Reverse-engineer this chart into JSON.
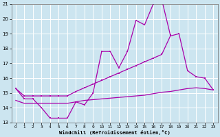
{
  "xlabel": "Windchill (Refroidissement éolien,°C)",
  "bg_color": "#cce5f0",
  "grid_color": "#ffffff",
  "line_color": "#aa00aa",
  "xlim": [
    -0.5,
    23.5
  ],
  "ylim": [
    13,
    21
  ],
  "x_ticks": [
    0,
    1,
    2,
    3,
    4,
    5,
    6,
    7,
    8,
    9,
    10,
    11,
    12,
    13,
    14,
    15,
    16,
    17,
    18,
    19,
    20,
    21,
    22,
    23
  ],
  "y_ticks": [
    13,
    14,
    15,
    16,
    17,
    18,
    19,
    20,
    21
  ],
  "line_jagged_x": [
    0,
    1,
    2,
    3,
    4,
    5,
    6,
    7,
    8,
    9,
    10,
    11,
    12,
    13,
    14,
    15,
    16,
    17,
    18
  ],
  "line_jagged_y": [
    15.3,
    14.6,
    14.6,
    14.0,
    13.3,
    13.3,
    13.3,
    14.4,
    14.2,
    15.0,
    17.8,
    17.8,
    16.7,
    17.8,
    19.9,
    19.6,
    21.0,
    21.3,
    18.9
  ],
  "line_upper_x": [
    0,
    1,
    2,
    3,
    4,
    5,
    6,
    7,
    8,
    9,
    10,
    11,
    12,
    13,
    14,
    15,
    16,
    17,
    18,
    19,
    20,
    21,
    22,
    23
  ],
  "line_upper_y": [
    15.3,
    14.8,
    14.8,
    14.8,
    14.8,
    14.8,
    14.8,
    15.1,
    15.35,
    15.6,
    15.85,
    16.1,
    16.35,
    16.6,
    16.85,
    17.1,
    17.35,
    17.6,
    18.85,
    19.0,
    16.5,
    16.1,
    16.0,
    15.2
  ],
  "line_lower_x": [
    0,
    1,
    2,
    3,
    4,
    5,
    6,
    7,
    8,
    9,
    10,
    11,
    12,
    13,
    14,
    15,
    16,
    17,
    18,
    19,
    20,
    21,
    22,
    23
  ],
  "line_lower_y": [
    14.5,
    14.3,
    14.3,
    14.3,
    14.3,
    14.3,
    14.3,
    14.4,
    14.5,
    14.55,
    14.6,
    14.65,
    14.7,
    14.75,
    14.8,
    14.85,
    14.95,
    15.05,
    15.1,
    15.2,
    15.3,
    15.35,
    15.3,
    15.2
  ]
}
